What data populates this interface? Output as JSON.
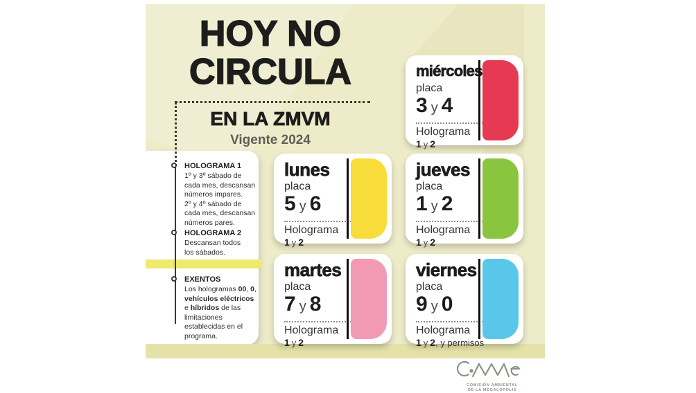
{
  "title": {
    "line1": "HOY NO",
    "line2": "CIRCULA",
    "subtitle": "EN LA ZMVM",
    "vigente": "Vigente 2024"
  },
  "sidebar": {
    "entries": [
      {
        "title": "HOLOGRAMA 1",
        "body": "1º y 3º sábado de\ncada mes, descansan\nnúmeros impares.\n2º y 4º sábado de\ncada mes, descansan\nnúmeros pares."
      },
      {
        "title": "HOLOGRAMA 2",
        "body": "Descansan todos\nlos sábados."
      },
      {
        "title": "EXENTOS",
        "body_rich": [
          {
            "t": "Los hologramas "
          },
          {
            "t": "00",
            "b": true
          },
          {
            "t": ", "
          },
          {
            "t": "0",
            "b": true
          },
          {
            "t": ",\n"
          },
          {
            "t": "vehículos eléctricos",
            "b": true
          },
          {
            "t": "\ne "
          },
          {
            "t": "híbridos",
            "b": true
          },
          {
            "t": " de las\nlimitaciones\nestablecidas en el\nprograma."
          }
        ]
      }
    ]
  },
  "cards": [
    {
      "day": "miércoles",
      "placa_label": "placa",
      "n1": "3",
      "sep": "y",
      "n2": "4",
      "holo_label": "Holograma",
      "h1": "1",
      "hsep": "y",
      "h2": "2",
      "hsuffix": "",
      "color": "#e63a52"
    },
    {
      "day": "lunes",
      "placa_label": "placa",
      "n1": "5",
      "sep": "y",
      "n2": "6",
      "holo_label": "Holograma",
      "h1": "1",
      "hsep": "y",
      "h2": "2",
      "hsuffix": "",
      "color": "#f8dc3a"
    },
    {
      "day": "jueves",
      "placa_label": "placa",
      "n1": "1",
      "sep": "y",
      "n2": "2",
      "holo_label": "Holograma",
      "h1": "1",
      "hsep": "y",
      "h2": "2",
      "hsuffix": "",
      "color": "#8ac540"
    },
    {
      "day": "martes",
      "placa_label": "placa",
      "n1": "7",
      "sep": "y",
      "n2": "8",
      "holo_label": "Holograma",
      "h1": "1",
      "hsep": "y",
      "h2": "2",
      "hsuffix": "",
      "color": "#f29ab4"
    },
    {
      "day": "viernes",
      "placa_label": "placa",
      "n1": "9",
      "sep": "y",
      "n2": "0",
      "holo_label": "Holograma",
      "h1": "1",
      "hsep": "y",
      "h2": "2",
      "hsuffix": ", y permisos",
      "color": "#5ac7e9"
    }
  ],
  "logo": {
    "name": "CAMe",
    "caption1": "COMISIÓN AMBIENTAL",
    "caption2": "DE LA MEGALÓPOLIS"
  },
  "colors": {
    "background": "#edebc8",
    "highlight_stripe": "#edea6d",
    "bottom_band": "#e5e2a9",
    "red": "#e63a52",
    "yellow": "#f8dc3a",
    "green": "#8ac540",
    "pink": "#f29ab4",
    "blue": "#5ac7e9",
    "logo_gray": "#8b9383"
  }
}
